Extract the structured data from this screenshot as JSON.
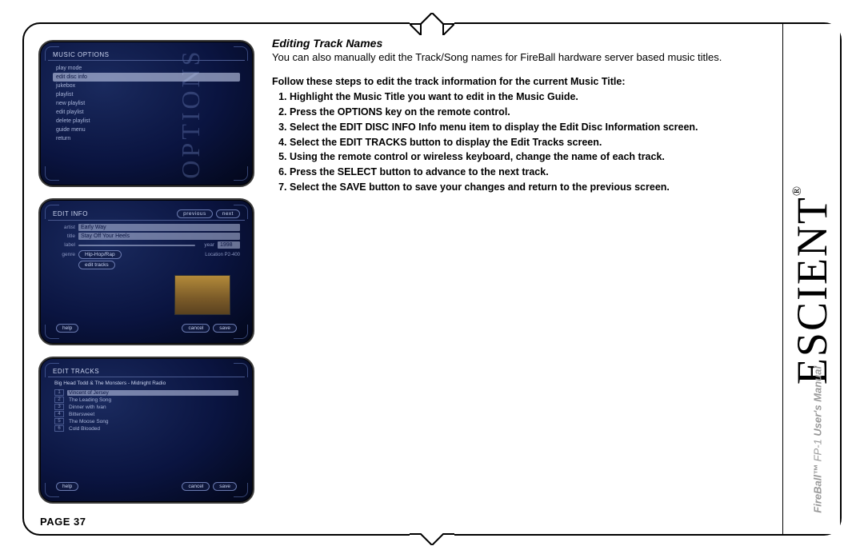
{
  "page_label": "PAGE 37",
  "brand": "ESCIENT",
  "brand_reg": "®",
  "product_line": "FireBall™ FP-1 User's Manual",
  "heading": "Editing Track Names",
  "intro": "You can also manually edit the Track/Song names for FireBall hardware server based music titles.",
  "lead": "Follow these steps to edit the track information for the current Music Title:",
  "steps": [
    "Highlight the Music Title you want to edit in the Music Guide.",
    "Press the OPTIONS key on the remote control.",
    "Select the EDIT DISC INFO Info menu item to display the Edit Disc Information screen.",
    "Select the EDIT TRACKS button to display the Edit Tracks screen.",
    "Using the remote control or wireless keyboard, change the name of each track.",
    "Press the SELECT button to advance to the next track.",
    "Select the SAVE button to save your changes and return to the previous screen."
  ],
  "screen1": {
    "title": "MUSIC OPTIONS",
    "watermark": "OPTIONS",
    "items": [
      "play mode",
      "edit disc info",
      "jukebox",
      "playlist",
      "new playlist",
      "edit playlist",
      "delete playlist",
      "guide menu",
      "return"
    ],
    "selected_index": 1
  },
  "screen2": {
    "title": "EDIT INFO",
    "btn_prev": "previous",
    "btn_next": "next",
    "fields": {
      "artist_lbl": "artist",
      "artist_val": "Early Way",
      "title_lbl": "title",
      "title_val": "Stay Off Your Heels",
      "label_lbl": "label",
      "label_val": "",
      "year_lbl": "year",
      "year_val": "1998",
      "genre_lbl": "genre",
      "genre_btn": "Hip-Hop/Rap",
      "loc_lbl": "Location P2-400",
      "edit_tracks": "edit tracks"
    },
    "help": "help",
    "cancel": "cancel",
    "save": "save"
  },
  "screen3": {
    "title": "EDIT TRACKS",
    "album_line": "Big Head Todd & The Monsters - Midnight Radio",
    "tracks": [
      {
        "n": "1",
        "name": "Vincent of Jersey",
        "hl": true
      },
      {
        "n": "2",
        "name": "The Leading Song"
      },
      {
        "n": "3",
        "name": "Dinner with Ivan"
      },
      {
        "n": "4",
        "name": "Bittersweet"
      },
      {
        "n": "5",
        "name": "The Moose Song"
      },
      {
        "n": "6",
        "name": "Cold Blooded"
      }
    ],
    "help": "help",
    "cancel": "cancel",
    "save": "save"
  }
}
